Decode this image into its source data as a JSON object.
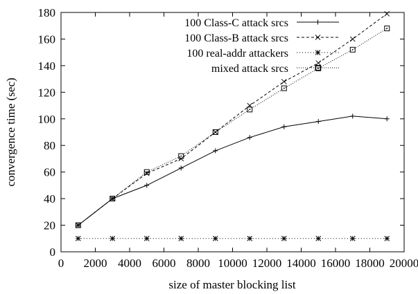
{
  "chart_data": {
    "type": "line",
    "title": "",
    "xlabel": "size of master blocking list",
    "ylabel": "convergence time (sec)",
    "xlim": [
      0,
      20000
    ],
    "ylim": [
      0,
      180
    ],
    "xticks": [
      0,
      2000,
      4000,
      6000,
      8000,
      10000,
      12000,
      14000,
      16000,
      18000,
      20000
    ],
    "yticks": [
      0,
      20,
      40,
      60,
      80,
      100,
      120,
      140,
      160,
      180
    ],
    "grid": false,
    "legend_position": "top-right",
    "series": [
      {
        "name": "100 Class-C attack srcs",
        "marker": "plus",
        "dash": "solid",
        "x": [
          1000,
          3000,
          5000,
          7000,
          9000,
          11000,
          13000,
          15000,
          17000,
          19000
        ],
        "y": [
          20,
          40,
          50,
          63,
          76,
          86,
          94,
          98,
          102,
          100
        ]
      },
      {
        "name": "100 Class-B attack srcs",
        "marker": "cross",
        "dash": "dashed",
        "x": [
          1000,
          3000,
          5000,
          7000,
          9000,
          11000,
          13000,
          15000,
          17000,
          19000
        ],
        "y": [
          20,
          40,
          59,
          70,
          90,
          110,
          128,
          142,
          160,
          179
        ]
      },
      {
        "name": "100 real-addr attackers",
        "marker": "asterisk",
        "dash": "dotted-fine",
        "x": [
          1000,
          3000,
          5000,
          7000,
          9000,
          11000,
          13000,
          15000,
          17000,
          19000
        ],
        "y": [
          10,
          10,
          10,
          10,
          10,
          10,
          10,
          10,
          10,
          10
        ]
      },
      {
        "name": "mixed attack srcs",
        "marker": "boxed-dot",
        "dash": "dotted",
        "x": [
          1000,
          3000,
          5000,
          7000,
          9000,
          11000,
          13000,
          15000,
          17000,
          19000
        ],
        "y": [
          20,
          40,
          60,
          72,
          90,
          107,
          123,
          138,
          152,
          168
        ]
      }
    ]
  }
}
